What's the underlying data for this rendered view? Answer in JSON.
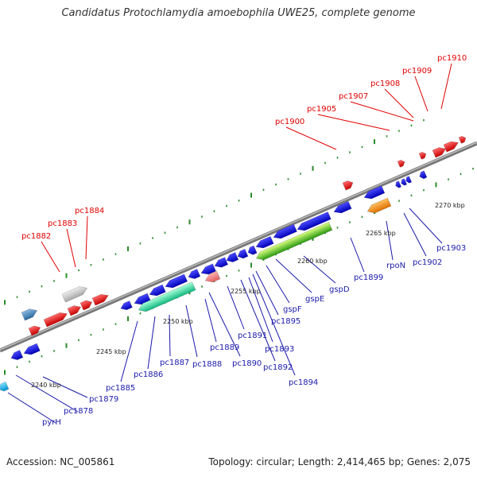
{
  "title": "Candidatus Protochlamydia amoebophila UWE25, complete genome",
  "footer": {
    "accession": "Accession: NC_005861",
    "summary": "Topology: circular; Length: 2,414,465 bp; Genes: 2,075"
  },
  "colors": {
    "forward_gene": "#e00000",
    "reverse_gene": "#1010e0",
    "backbone": "#888888",
    "tick_mark": "#2a8a2a",
    "label_forward": "#e00000",
    "label_reverse": "#1a1aaa"
  },
  "scale_labels": [
    "2240 kbp",
    "2245 kbp",
    "2250 kbp",
    "2255 kbp",
    "2260 kbp",
    "2265 kbp",
    "2270 kbp"
  ],
  "forward_genes": [
    "pc1882",
    "pc1883",
    "pc1884",
    "pc1900",
    "pc1905",
    "pc1907",
    "pc1908",
    "pc1909",
    "pc1910"
  ],
  "reverse_genes": [
    "pyrH",
    "pc1878",
    "pc1879",
    "pc1885",
    "pc1886",
    "pc1887",
    "pc1888",
    "pc1889",
    "pc1890",
    "pc1891",
    "pc1892",
    "pc1893",
    "pc1894",
    "pc1895",
    "gspF",
    "gspE",
    "gspD",
    "pc1899",
    "rpoN",
    "pc1902",
    "pc1903"
  ]
}
